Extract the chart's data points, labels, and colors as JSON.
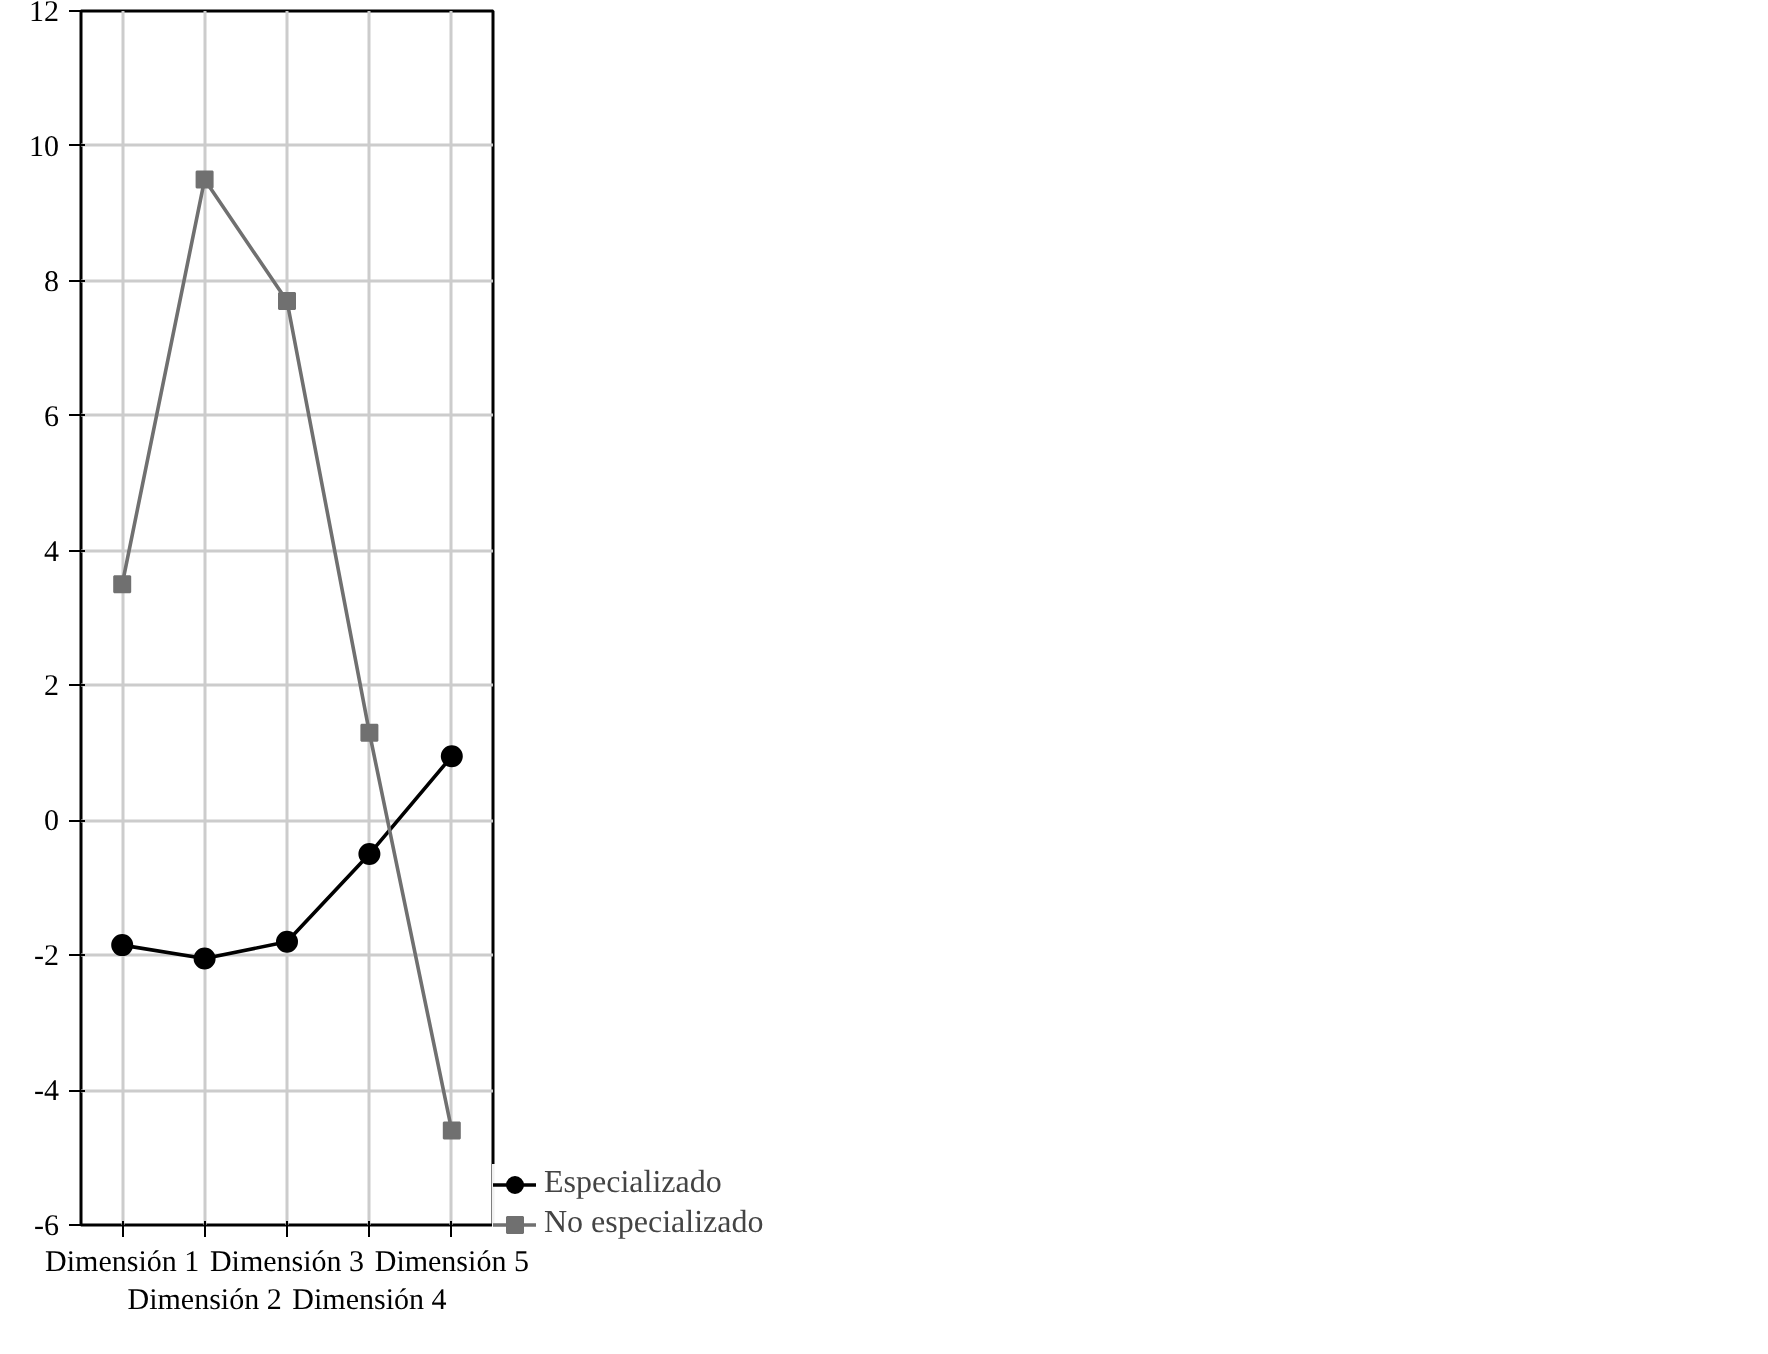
{
  "chart_data": {
    "type": "line",
    "categories": [
      "Dimensión 1",
      "Dimensión 2",
      "Dimensión 3",
      "Dimensión 4",
      "Dimensión 5"
    ],
    "series": [
      {
        "name": "Especializado",
        "color": "#000000",
        "marker": "circle",
        "values": [
          -1.85,
          -2.05,
          -1.8,
          -0.5,
          0.95
        ]
      },
      {
        "name": "No especializado",
        "color": "#707070",
        "marker": "square",
        "values": [
          3.5,
          9.5,
          7.7,
          1.3,
          -4.6
        ]
      }
    ],
    "ylim": [
      -6,
      12
    ],
    "yticks": [
      -6,
      -4,
      -2,
      0,
      2,
      4,
      6,
      8,
      10,
      12
    ],
    "grid": true,
    "legend": "bottom right",
    "line_style": "solid"
  }
}
